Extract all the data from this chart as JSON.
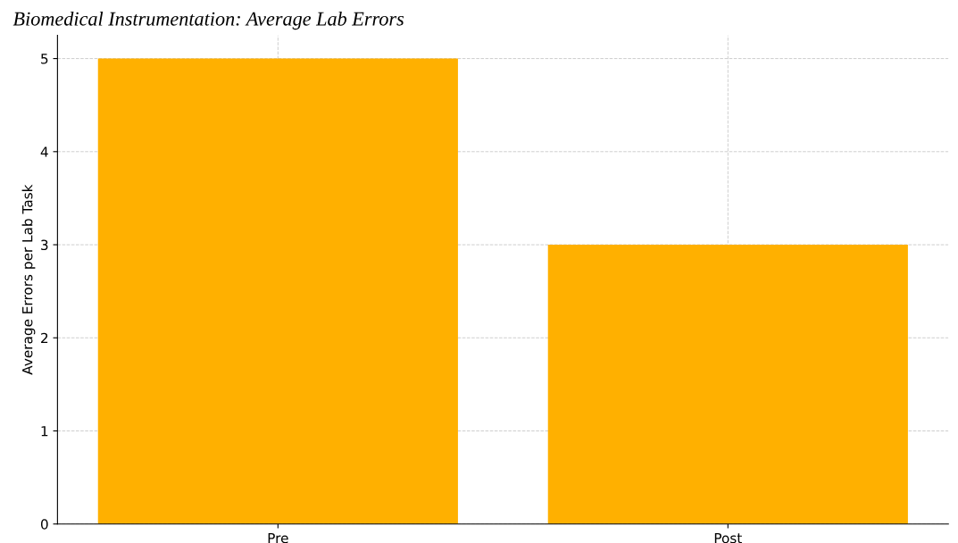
{
  "chart_data": {
    "type": "bar",
    "title": "Biomedical Instrumentation: Average Lab Errors",
    "ylabel": "Average Errors per Lab Task",
    "categories": [
      "Pre",
      "Post"
    ],
    "values": [
      5,
      3
    ],
    "color": "#ffb000",
    "ylim": [
      0,
      5.25
    ],
    "yticks": [
      0,
      1,
      2,
      3,
      4,
      5
    ],
    "grid": true
  }
}
